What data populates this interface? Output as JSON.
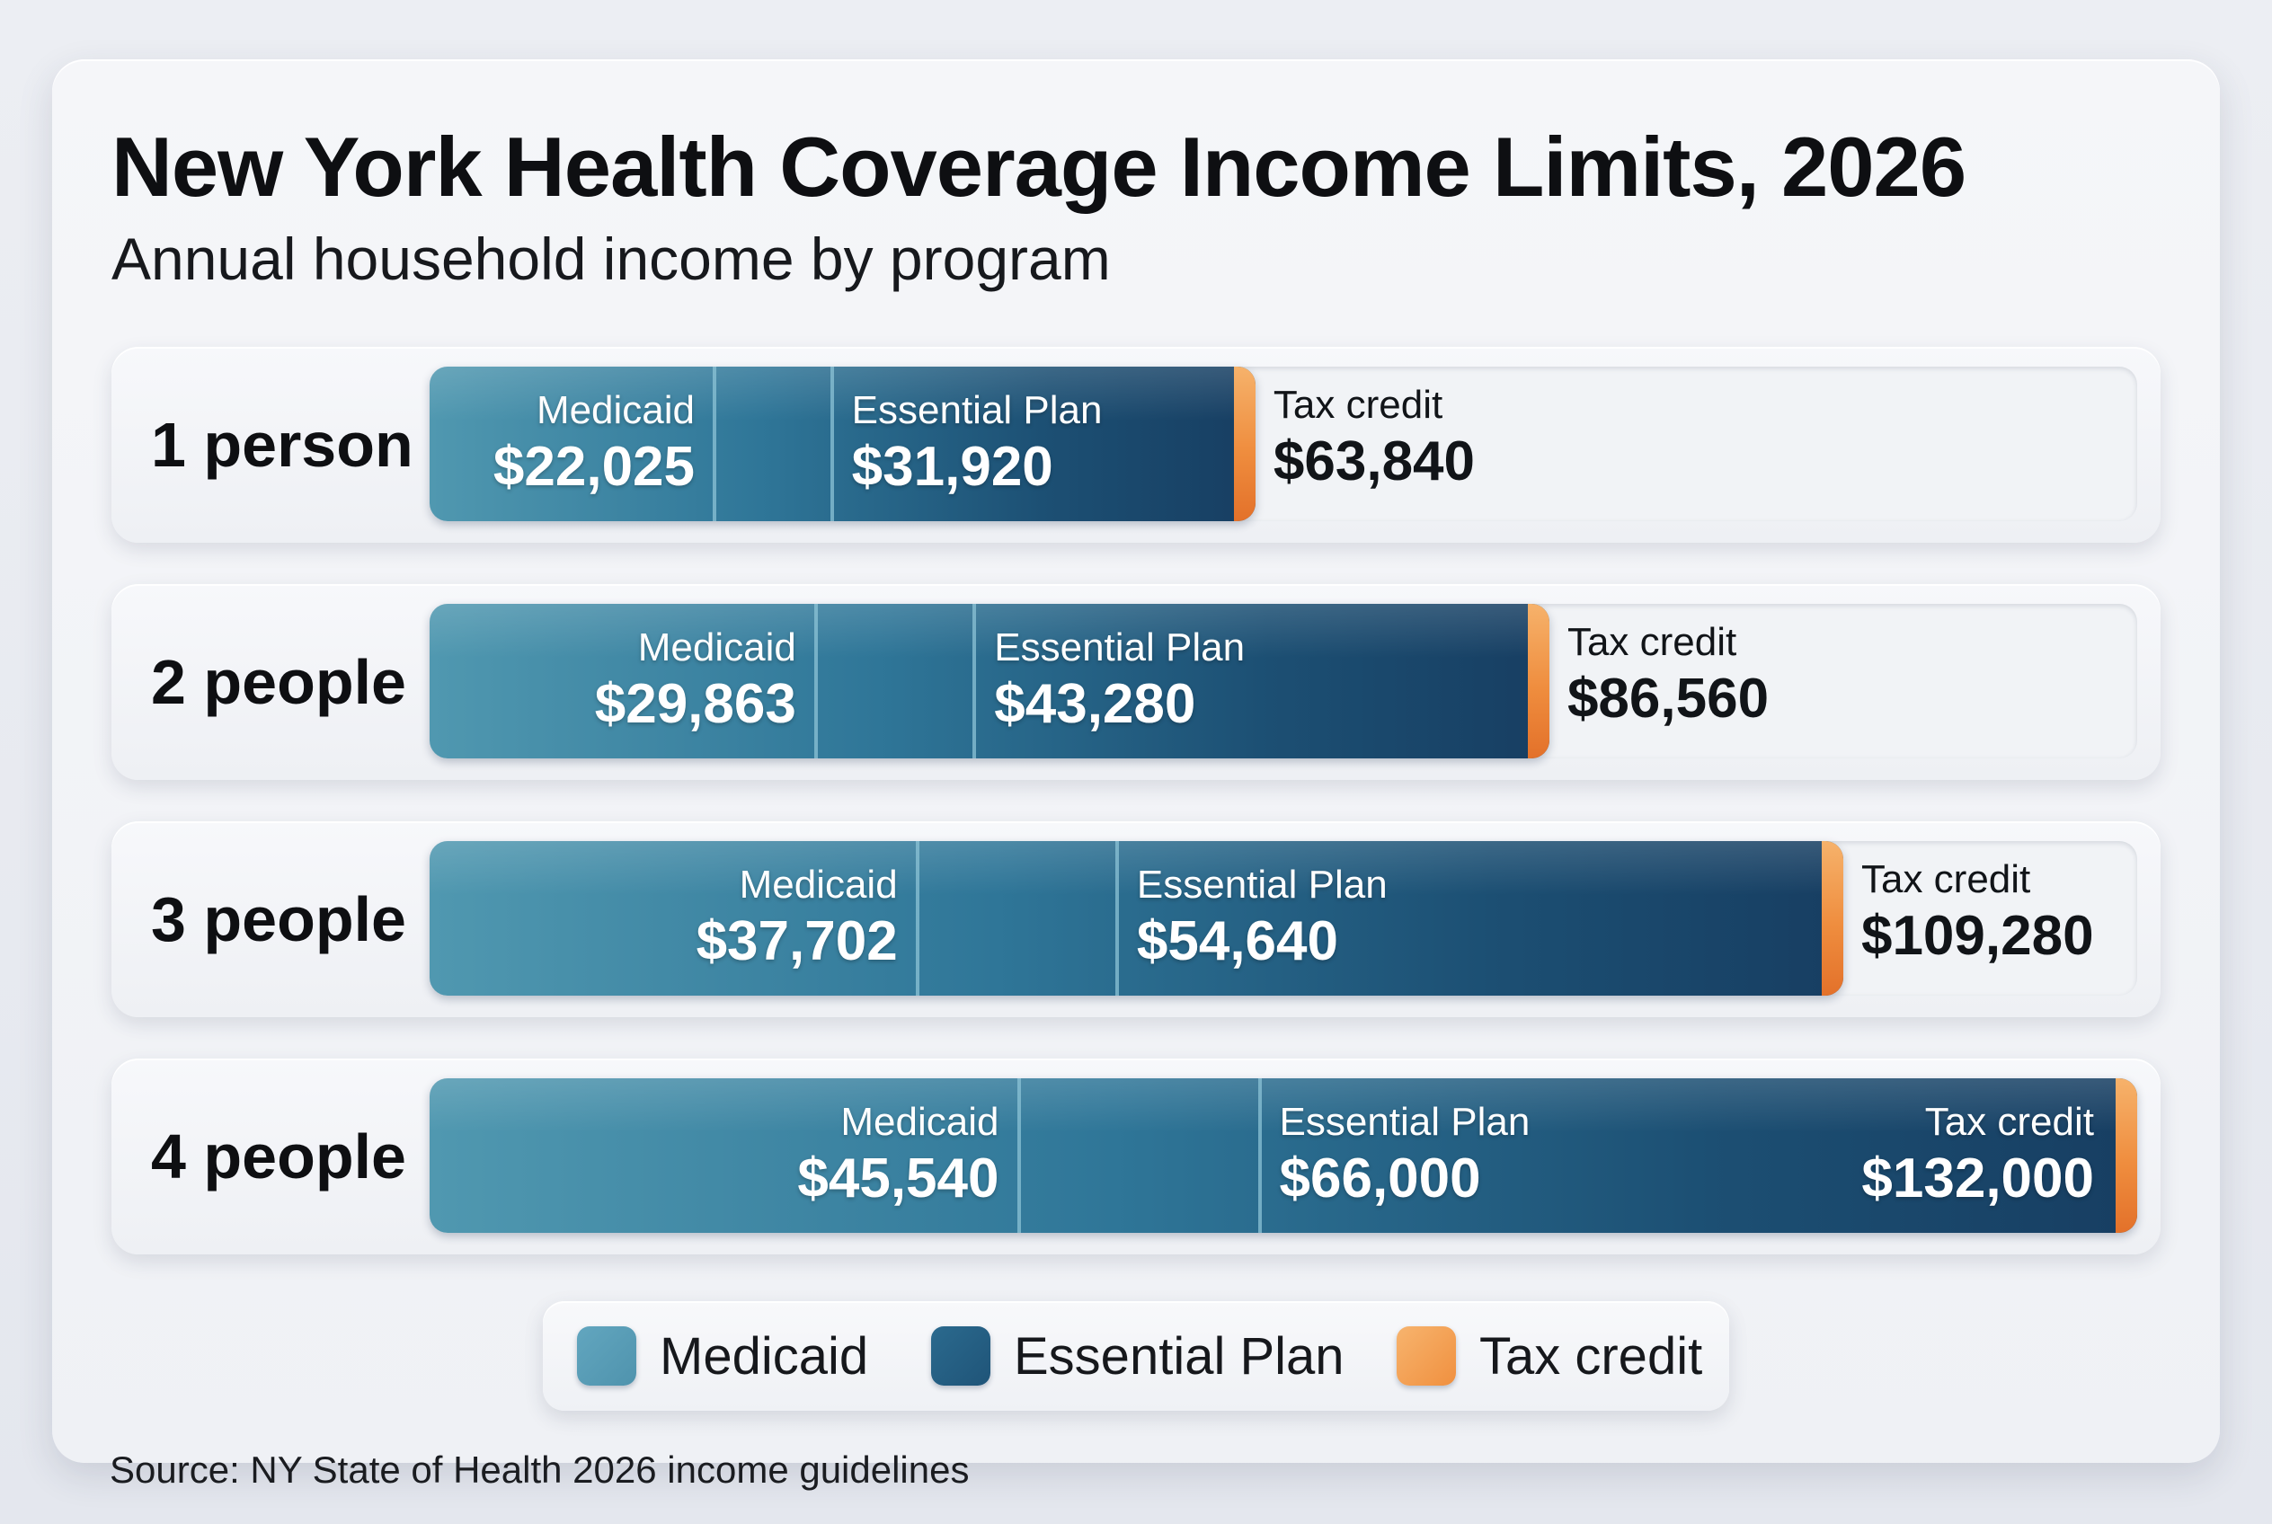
{
  "title": "New York Health Coverage Income Limits, 2026",
  "subtitle": "Annual household income by program",
  "source": "Source: NY State of Health 2026 income guidelines",
  "colors": {
    "medicaid": "#4f93ad",
    "essential_plan": "#1f5478",
    "tax_credit": "#f0903f"
  },
  "chart_data": {
    "type": "bar",
    "orientation": "horizontal",
    "title": "New York Health Coverage Income Limits, 2026",
    "subtitle": "Annual household income by program",
    "categories": [
      "1 person",
      "2 people",
      "3 people",
      "4 people"
    ],
    "series": [
      {
        "name": "Medicaid",
        "values": [
          22025,
          29863,
          37702,
          45540
        ],
        "labels": [
          "$22,025",
          "$29,863",
          "$37,702",
          "$45,540"
        ]
      },
      {
        "name": "Essential Plan",
        "values": [
          31920,
          43280,
          54640,
          66000
        ],
        "labels": [
          "$31,920",
          "$43,280",
          "$54,640",
          "$66,000"
        ]
      },
      {
        "name": "Tax credit",
        "values": [
          63840,
          86560,
          109280,
          132000
        ],
        "labels": [
          "$63,840",
          "$86,560",
          "$109,280",
          "$132,000"
        ]
      }
    ],
    "xlim": [
      0,
      132000
    ],
    "grid": false,
    "legend": "bottom-center"
  },
  "legend": {
    "items": [
      {
        "label": "Medicaid",
        "color": "#4f93ad"
      },
      {
        "label": "Essential Plan",
        "color": "#1f5478"
      },
      {
        "label": "Tax credit",
        "color": "#f0903f"
      }
    ]
  }
}
